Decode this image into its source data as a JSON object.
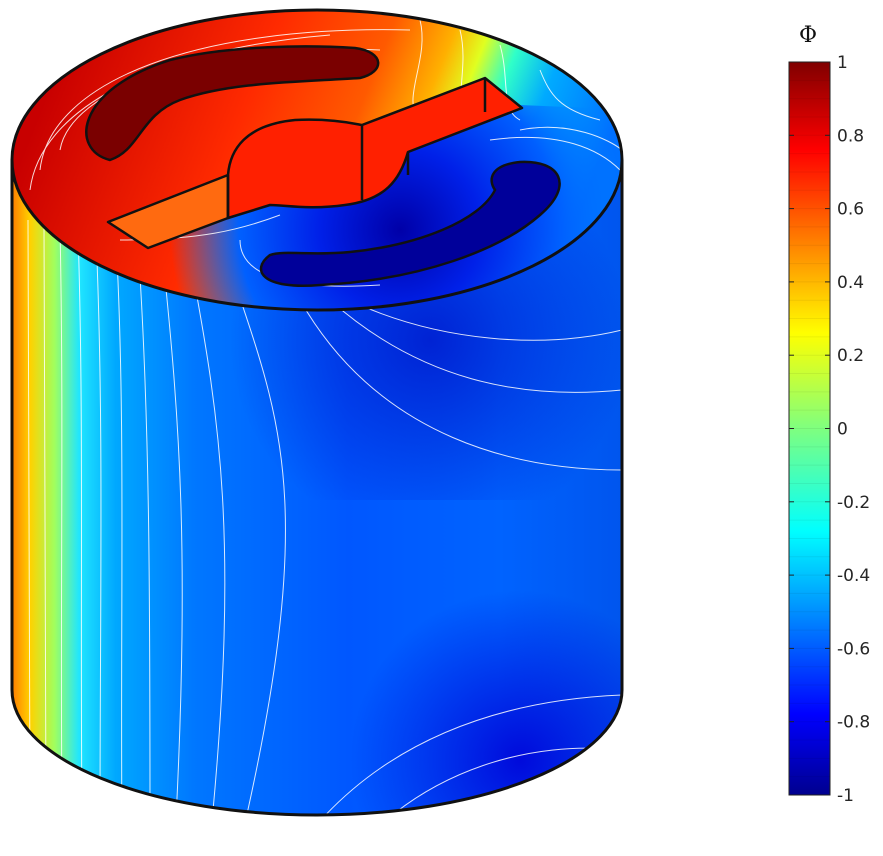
{
  "chart_data": {
    "type": "heatmap",
    "title": "",
    "colormap": "jet",
    "colorbar": {
      "label": "Φ",
      "range": [
        -1,
        1
      ],
      "ticks": [
        "1",
        "0.8",
        "0.6",
        "0.4",
        "0.2",
        "0",
        "-0.2",
        "-0.4",
        "-0.6",
        "-0.8",
        "-1"
      ],
      "tick_values": [
        1,
        0.8,
        0.6,
        0.4,
        0.2,
        0,
        -0.2,
        -0.4,
        -0.6,
        -0.8,
        -1
      ],
      "levels": 40
    },
    "geometry": "cylinder",
    "features": [
      "positive-electrode-slot",
      "negative-electrode-slot",
      "central-hub-with-plate"
    ],
    "electrode_potentials": {
      "positive": 1,
      "negative": -1
    }
  }
}
